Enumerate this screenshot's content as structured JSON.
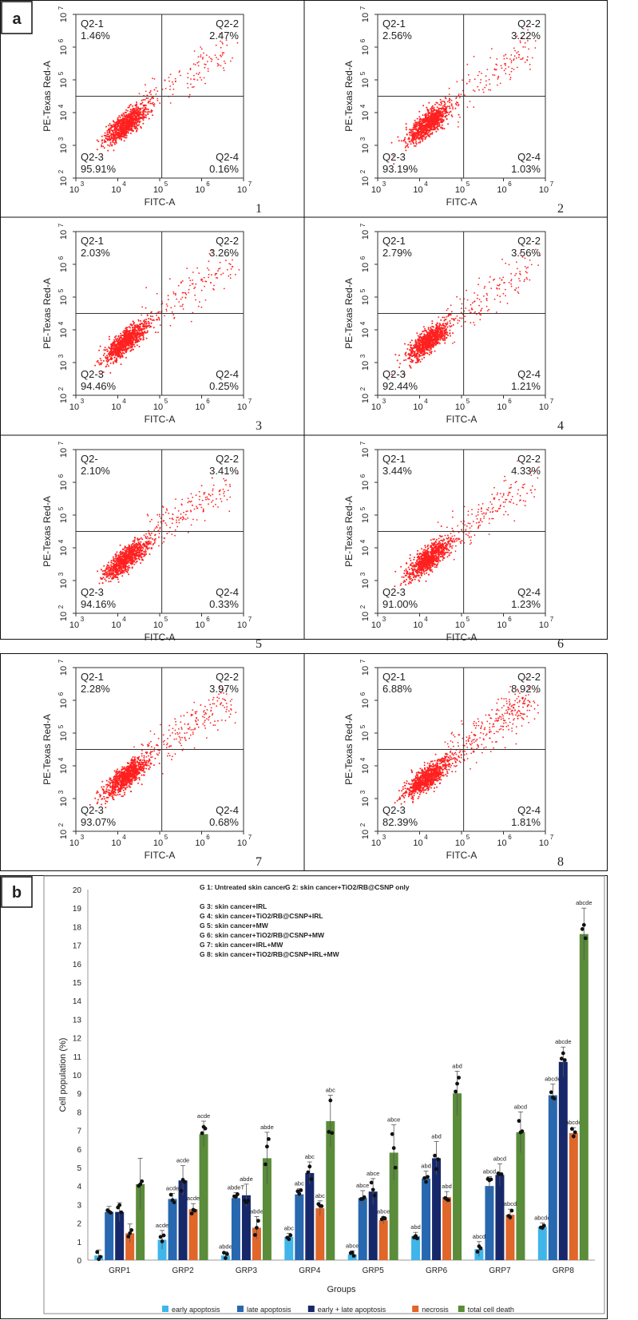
{
  "panel_a": {
    "label": "a",
    "chart_data": [
      {
        "type": "scatter",
        "number": "1",
        "xlabel": "FITC-A",
        "ylabel": "PE-Texas Red-A",
        "quadrants": [
          {
            "name": "Q2-1",
            "value": "1.46%"
          },
          {
            "name": "Q2-2",
            "value": "2.47%"
          },
          {
            "name": "Q2-3",
            "value": "95.91%"
          },
          {
            "name": "Q2-4",
            "value": "0.16%"
          }
        ]
      },
      {
        "type": "scatter",
        "number": "2",
        "xlabel": "FITC-A",
        "ylabel": "PE-Texas Red-A",
        "quadrants": [
          {
            "name": "Q2-1",
            "value": "2.56%"
          },
          {
            "name": "Q2-2",
            "value": "3.22%"
          },
          {
            "name": "Q2-3",
            "value": "93.19%"
          },
          {
            "name": "Q2-4",
            "value": "1.03%"
          }
        ]
      },
      {
        "type": "scatter",
        "number": "3",
        "xlabel": "FITC-A",
        "ylabel": "PE-Texas Red-A",
        "quadrants": [
          {
            "name": "Q2-1",
            "value": "2.03%"
          },
          {
            "name": "Q2-2",
            "value": "3.26%"
          },
          {
            "name": "Q2-3",
            "value": "94.46%"
          },
          {
            "name": "Q2-4",
            "value": "0.25%"
          }
        ]
      },
      {
        "type": "scatter",
        "number": "4",
        "xlabel": "FITC-A",
        "ylabel": "PE-Texas Red-A",
        "quadrants": [
          {
            "name": "Q2-1",
            "value": "2.79%"
          },
          {
            "name": "Q2-2",
            "value": "3.56%"
          },
          {
            "name": "Q2-3",
            "value": "92.44%"
          },
          {
            "name": "Q2-4",
            "value": "1.21%"
          }
        ]
      },
      {
        "type": "scatter",
        "number": "5",
        "xlabel": "FITC-A",
        "ylabel": "PE-Texas Red-A",
        "quadrants": [
          {
            "name": "Q2-",
            "value": "2.10%"
          },
          {
            "name": "Q2-2",
            "value": "3.41%"
          },
          {
            "name": "Q2-3",
            "value": "94.16%"
          },
          {
            "name": "Q2-4",
            "value": "0.33%"
          }
        ]
      },
      {
        "type": "scatter",
        "number": "6",
        "xlabel": "FITC-A",
        "ylabel": "PE-Texas Red-A",
        "quadrants": [
          {
            "name": "Q2-1",
            "value": "3.44%"
          },
          {
            "name": "Q2-2",
            "value": "4.33%"
          },
          {
            "name": "Q2-3",
            "value": "91.00%"
          },
          {
            "name": "Q2-4",
            "value": "1.23%"
          }
        ]
      },
      {
        "type": "scatter",
        "number": "7",
        "xlabel": "FITC-A",
        "ylabel": "PE-Texas Red-A",
        "quadrants": [
          {
            "name": "Q2-1",
            "value": "2.28%"
          },
          {
            "name": "Q2-2",
            "value": "3.97%"
          },
          {
            "name": "Q2-3",
            "value": "93.07%"
          },
          {
            "name": "Q2-4",
            "value": "0.68%"
          }
        ]
      },
      {
        "type": "scatter",
        "number": "8",
        "xlabel": "FITC-A",
        "ylabel": "PE-Texas Red-A",
        "quadrants": [
          {
            "name": "Q2-1",
            "value": "6.88%"
          },
          {
            "name": "Q2-2",
            "value": "8.92%"
          },
          {
            "name": "Q2-3",
            "value": "82.39%"
          },
          {
            "name": "Q2-4",
            "value": "1.81%"
          }
        ]
      }
    ],
    "tick_labels": [
      "10",
      "3",
      "10",
      "4",
      "10",
      "5",
      "10",
      "6",
      "10",
      "7",
      "10",
      "2"
    ],
    "dot_color": "#ff2020"
  },
  "panel_b": {
    "label": "b",
    "chart_data": {
      "type": "bar",
      "xlabel": "Groups",
      "ylabel": "Cell population (%)",
      "ylim": [
        0,
        20
      ],
      "yticks": [
        "0",
        "1",
        "2",
        "3",
        "4",
        "5",
        "6",
        "7",
        "8",
        "9",
        "10",
        "11",
        "12",
        "13",
        "14",
        "15",
        "16",
        "17",
        "18",
        "19",
        "20"
      ],
      "categories": [
        "GRP1",
        "GRP2",
        "GRP3",
        "GRP4",
        "GRP5",
        "GRP6",
        "GRP7",
        "GRP8"
      ],
      "group_legend": [
        "G 1: Untreated skin cancer",
        "G 2: skin cancer+TiO2/RB@CSNP only",
        "G 3: skin cancer+IRL",
        "G 4: skin cancer+TiO2/RB@CSNP+IRL",
        "G 5: skin cancer+MW",
        "G 6: skin cancer+TiO2/RB@CSNP+MW",
        "G 7: skin cancer+IRL+MW",
        "G 8: skin cancer+TiO2/RB@CSNP+IRL+MW"
      ],
      "series": [
        {
          "name": "early apoptosis",
          "color": "#3fb5ea",
          "values": [
            0.25,
            1.1,
            0.25,
            1.25,
            0.3,
            1.3,
            0.6,
            1.8
          ],
          "errors": [
            0.3,
            0.5,
            0.2,
            0.2,
            0.2,
            0.2,
            0.4,
            0.2
          ],
          "labels": [
            "",
            "acde",
            "abde",
            "abc",
            "abce",
            "abd",
            "abcd",
            "abcde"
          ]
        },
        {
          "name": "late apoptosis",
          "color": "#2868b0",
          "values": [
            2.6,
            3.3,
            3.35,
            3.55,
            3.35,
            4.4,
            4.0,
            8.9
          ],
          "errors": [
            0.3,
            0.3,
            0.3,
            0.3,
            0.4,
            0.4,
            0.5,
            0.6
          ],
          "labels": [
            "",
            "acde",
            "abdeT",
            "abc",
            "abce",
            "abd",
            "abcd",
            "abcde"
          ]
        },
        {
          "name": "early + late apoptosis",
          "color": "#16286a",
          "values": [
            2.6,
            4.3,
            3.5,
            4.7,
            3.7,
            5.5,
            4.6,
            10.7
          ],
          "errors": [
            0.5,
            0.8,
            0.6,
            0.6,
            0.7,
            0.9,
            0.6,
            0.8
          ],
          "labels": [
            "",
            "acde",
            "abde",
            "abc",
            "abce",
            "abd",
            "abcd",
            "abcde"
          ]
        },
        {
          "name": "necrosis",
          "color": "#e0662a",
          "values": [
            1.45,
            2.75,
            1.75,
            2.8,
            2.15,
            3.4,
            2.45,
            6.85
          ],
          "errors": [
            0.5,
            0.3,
            0.6,
            0.4,
            0.2,
            0.3,
            0.3,
            0.3
          ],
          "labels": [
            "",
            "acde",
            "abde",
            "abc",
            "abce",
            "abd",
            "abcd",
            "abcde"
          ]
        },
        {
          "name": "total cell death",
          "color": "#5a8c3a",
          "values": [
            4.1,
            6.8,
            5.5,
            7.5,
            5.8,
            9.0,
            6.9,
            17.6
          ],
          "errors": [
            1.4,
            0.7,
            1.4,
            1.4,
            1.5,
            1.2,
            1.1,
            1.4
          ],
          "labels": [
            "",
            "acde",
            "abde",
            "abc",
            "abce",
            "abd",
            "abcd",
            "abcde"
          ]
        }
      ]
    }
  }
}
